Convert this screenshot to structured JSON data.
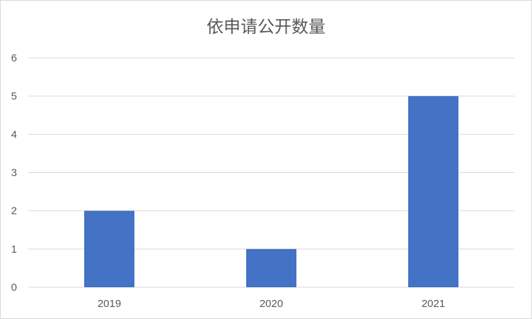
{
  "chart_data": {
    "type": "bar",
    "title": "依申请公开数量",
    "categories": [
      "2019",
      "2020",
      "2021"
    ],
    "values": [
      2,
      1,
      5
    ],
    "ylim": [
      0,
      6
    ],
    "yticks": [
      "0",
      "1",
      "2",
      "3",
      "4",
      "5",
      "6"
    ],
    "grid": true,
    "legend": "none",
    "bar_color": "#4472C4"
  }
}
